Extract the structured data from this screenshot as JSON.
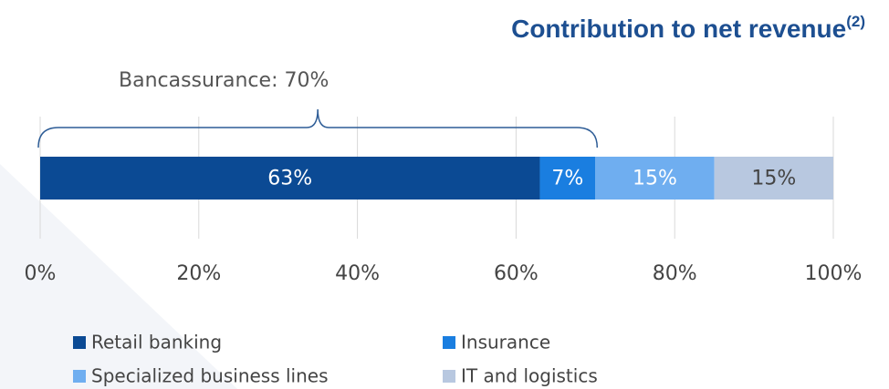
{
  "chart_data": {
    "type": "stacked_bar",
    "title": "Contribution to net revenue",
    "title_note": "(2)",
    "annotations": [
      {
        "text": "Bancassurance: 70%",
        "range": [
          0,
          70
        ]
      }
    ],
    "series": [
      {
        "name": "Retail banking",
        "color": "#0b4a94",
        "values": [
          63
        ],
        "value_labels": [
          "63%"
        ]
      },
      {
        "name": "Insurance",
        "color": "#1a7ee0",
        "values": [
          7
        ],
        "value_labels": [
          "7%"
        ]
      },
      {
        "name": "Specialized business lines",
        "color": "#6faef0",
        "values": [
          15
        ],
        "value_labels": [
          "15%"
        ]
      },
      {
        "name": "IT and logistics",
        "color": "#b8c8e0",
        "values": [
          15
        ],
        "value_labels": [
          "15%"
        ]
      }
    ],
    "xlim": [
      0,
      100
    ],
    "xticks": [
      {
        "value": 0,
        "label": "0%"
      },
      {
        "value": 20,
        "label": "20%"
      },
      {
        "value": 40,
        "label": "40%"
      },
      {
        "value": 60,
        "label": "60%"
      },
      {
        "value": 80,
        "label": "80%"
      },
      {
        "value": 100,
        "label": "100%"
      }
    ],
    "grid": true
  }
}
